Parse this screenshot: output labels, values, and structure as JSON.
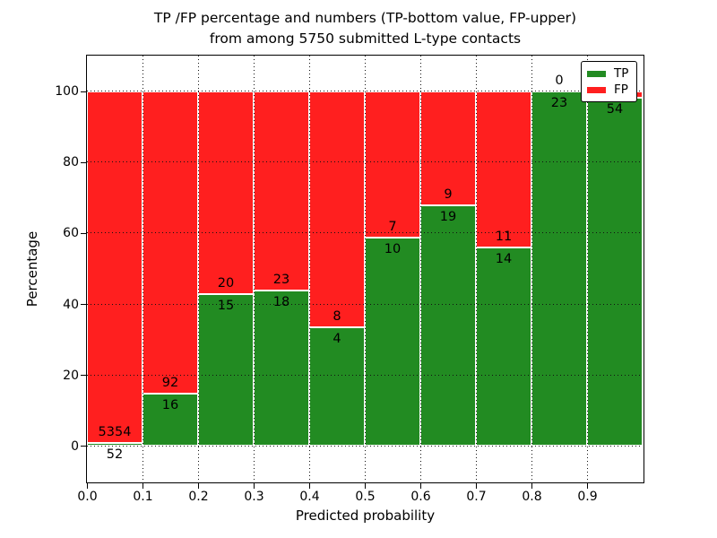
{
  "chart_data": {
    "type": "bar",
    "stacked": true,
    "normalized_to_percent": true,
    "title_line1": "TP /FP percentage and numbers (TP-bottom value, FP-upper)",
    "title_line2": "from among 5750 submitted L-type contacts",
    "xlabel": "Predicted probability",
    "ylabel": "Percentage",
    "total_submitted": 5750,
    "xlim": [
      0.0,
      1.0
    ],
    "ylim": [
      -10,
      110
    ],
    "grid_style": "dotted",
    "x_tick_labels": [
      "0.0",
      "0.1",
      "0.2",
      "0.3",
      "0.4",
      "0.5",
      "0.6",
      "0.7",
      "0.8",
      "0.9"
    ],
    "y_tick_values": [
      0,
      20,
      40,
      60,
      80,
      100
    ],
    "y_tick_labels": [
      "0",
      "20",
      "40",
      "60",
      "80",
      "100"
    ],
    "legend": {
      "position": "upper right",
      "entries": [
        {
          "label": "TP",
          "color": "#228b22"
        },
        {
          "label": "FP",
          "color": "#ff1f1f"
        }
      ]
    },
    "bins": [
      {
        "range": [
          0.0,
          0.1
        ],
        "tp": 52,
        "fp": 5354
      },
      {
        "range": [
          0.1,
          0.2
        ],
        "tp": 16,
        "fp": 92
      },
      {
        "range": [
          0.2,
          0.3
        ],
        "tp": 15,
        "fp": 20
      },
      {
        "range": [
          0.3,
          0.4
        ],
        "tp": 18,
        "fp": 23
      },
      {
        "range": [
          0.4,
          0.5
        ],
        "tp": 4,
        "fp": 8
      },
      {
        "range": [
          0.5,
          0.6
        ],
        "tp": 10,
        "fp": 7
      },
      {
        "range": [
          0.6,
          0.7
        ],
        "tp": 19,
        "fp": 9
      },
      {
        "range": [
          0.7,
          0.8
        ],
        "tp": 14,
        "fp": 11
      },
      {
        "range": [
          0.8,
          0.9
        ],
        "tp": 23,
        "fp": 0
      },
      {
        "range": [
          0.9,
          1.0
        ],
        "tp": 54,
        "fp": 1,
        "fp_label_hidden_by_legend": true
      }
    ]
  },
  "colors": {
    "tp": "#228b22",
    "fp": "#ff1f1f",
    "background": "#ffffff",
    "grid": "#111111",
    "text": "#000000"
  }
}
